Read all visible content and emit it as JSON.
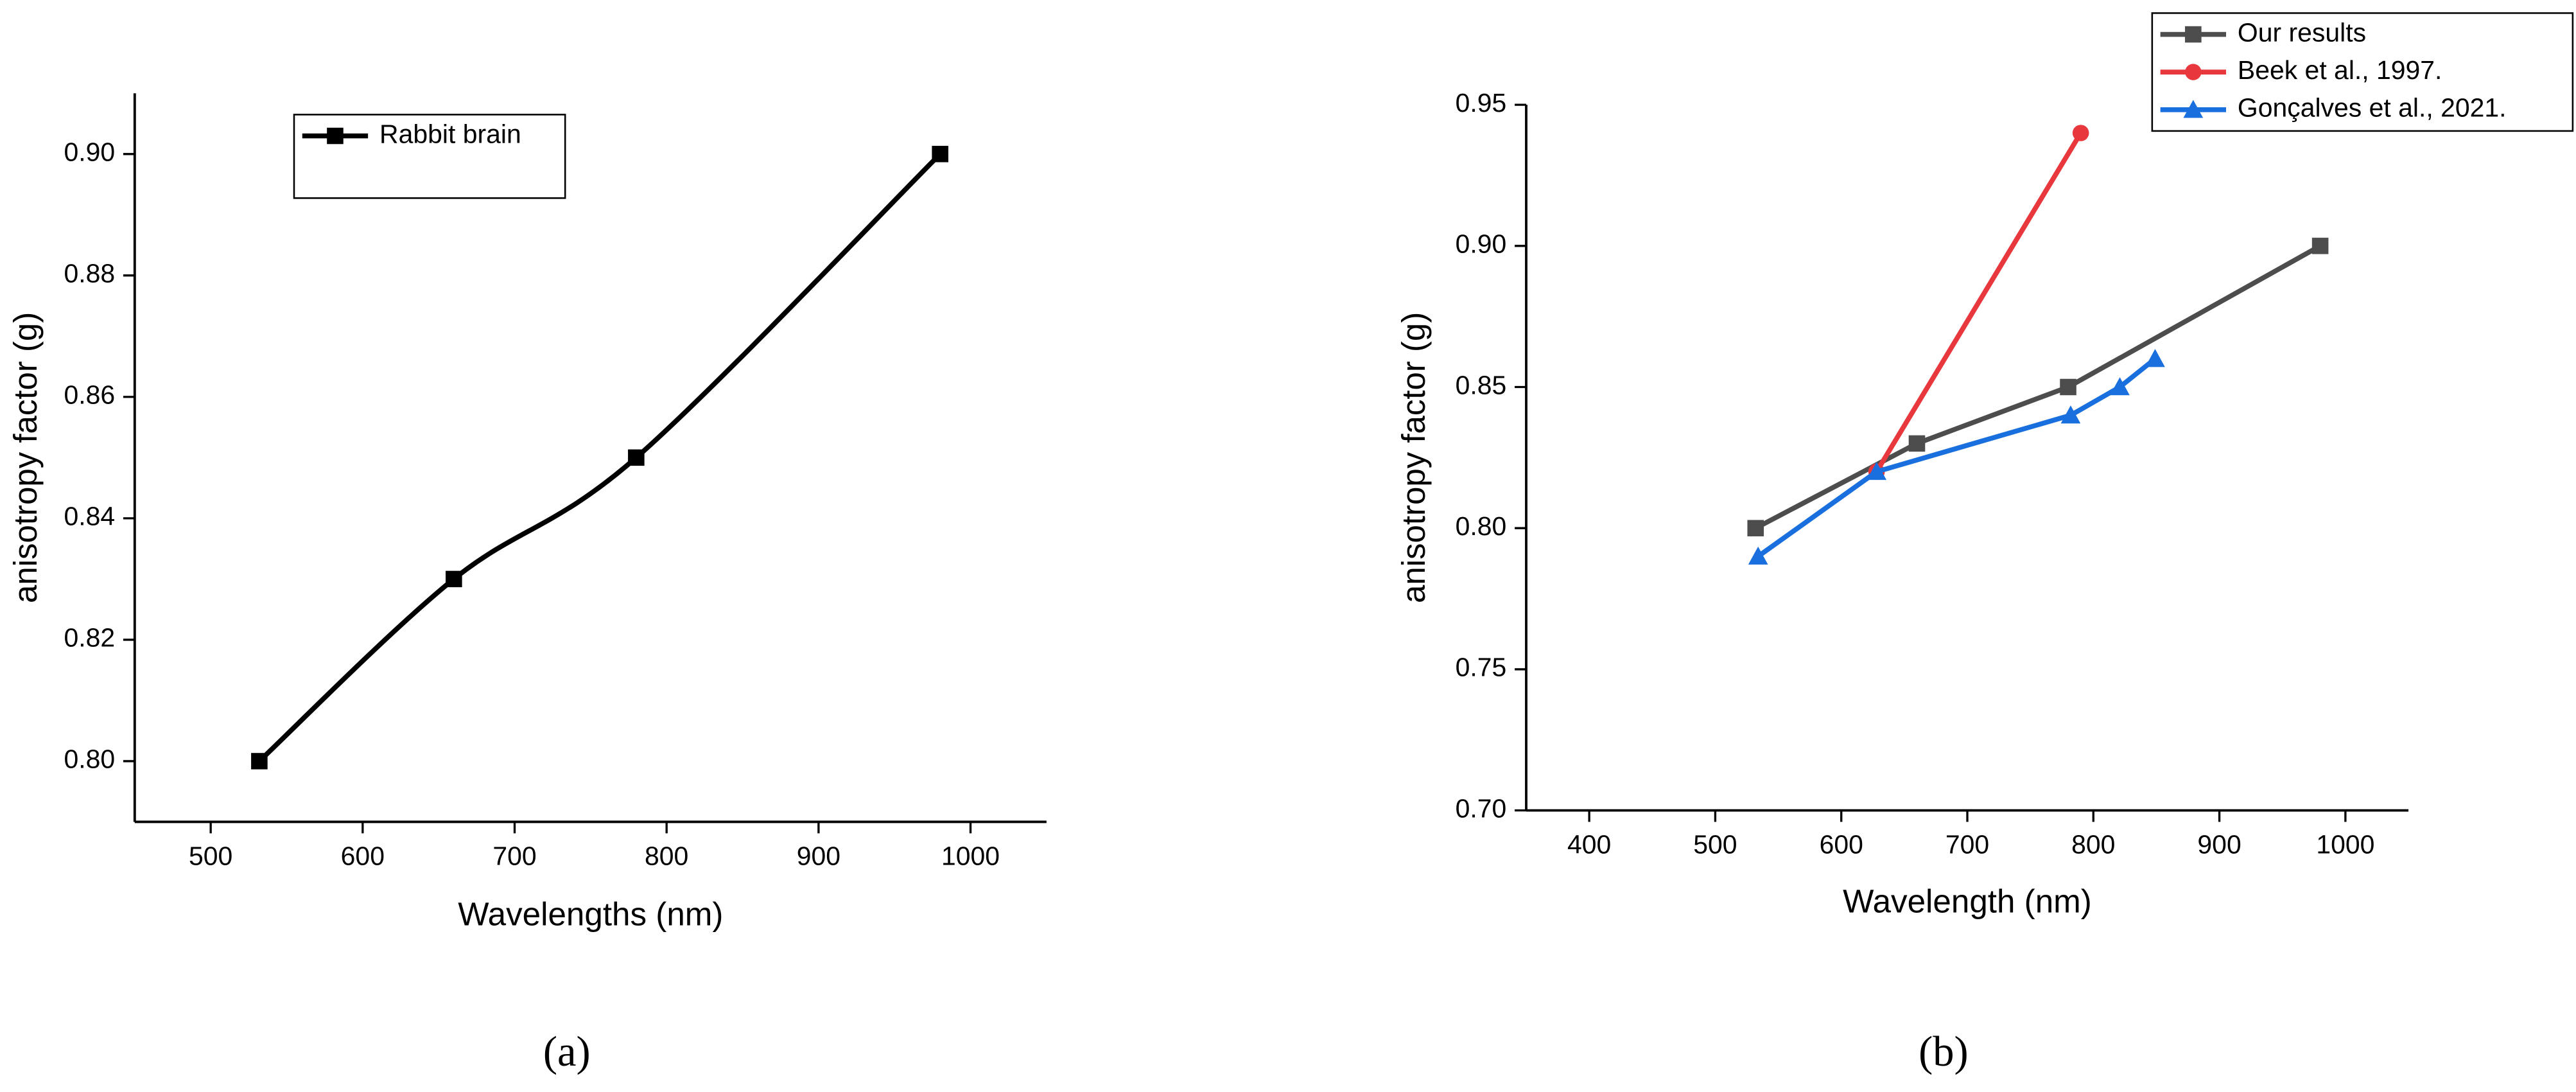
{
  "chart_data": [
    {
      "type": "line",
      "caption": "(a)",
      "xlabel": "Wavelengths (nm)",
      "ylabel": "anisotropy factor (g)",
      "legend": "upper left",
      "smooth": true,
      "xlim": [
        450,
        1050
      ],
      "ylim": [
        0.79,
        0.91
      ],
      "xticks": [
        500,
        600,
        700,
        800,
        900,
        1000
      ],
      "yticks": [
        {
          "value": 0.8,
          "label": "0.80"
        },
        {
          "value": 0.82,
          "label": "0.82"
        },
        {
          "value": 0.84,
          "label": "0.84"
        },
        {
          "value": 0.86,
          "label": "0.86"
        },
        {
          "value": 0.88,
          "label": "0.88"
        },
        {
          "value": 0.9,
          "label": "0.90"
        }
      ],
      "series": [
        {
          "name": "Rabbit brain",
          "color": "#000000",
          "marker": "square",
          "x": [
            532,
            660,
            780,
            980
          ],
          "values": [
            0.8,
            0.83,
            0.85,
            0.9
          ]
        }
      ]
    },
    {
      "type": "line",
      "caption": "(b)",
      "xlabel": "Wavelength (nm)",
      "ylabel": "anisotropy factor (g)",
      "legend": "upper right",
      "smooth": false,
      "xlim": [
        350,
        1050
      ],
      "ylim": [
        0.7,
        0.95
      ],
      "xticks": [
        400,
        500,
        600,
        700,
        800,
        900,
        1000
      ],
      "yticks": [
        {
          "value": 0.7,
          "label": "0.70"
        },
        {
          "value": 0.75,
          "label": "0.75"
        },
        {
          "value": 0.8,
          "label": "0.80"
        },
        {
          "value": 0.85,
          "label": "0.85"
        },
        {
          "value": 0.9,
          "label": "0.90"
        },
        {
          "value": 0.95,
          "label": "0.95"
        }
      ],
      "series": [
        {
          "name": "Our results",
          "color": "#4d4d4d",
          "marker": "square",
          "x": [
            532,
            660,
            780,
            980
          ],
          "values": [
            0.8,
            0.83,
            0.85,
            0.9
          ]
        },
        {
          "name": "Beek et al., 1997.",
          "color": "#e8383d",
          "marker": "circle",
          "x": [
            628,
            790
          ],
          "values": [
            0.82,
            0.94
          ]
        },
        {
          "name": "Gonçalves et al., 2021.",
          "color": "#1a6fdf",
          "marker": "triangle",
          "x": [
            534,
            628,
            782,
            821,
            849
          ],
          "values": [
            0.79,
            0.82,
            0.84,
            0.85,
            0.86
          ]
        }
      ]
    }
  ]
}
